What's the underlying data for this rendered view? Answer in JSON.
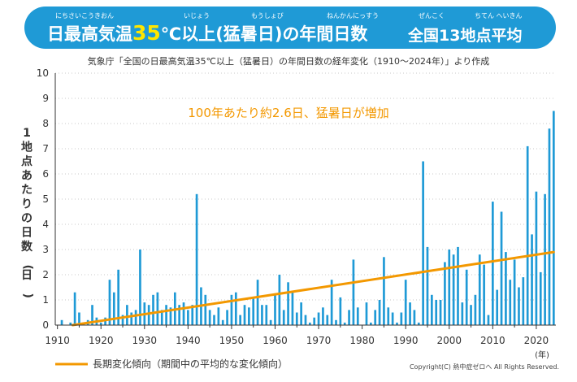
{
  "header": {
    "main_title": "日最高気温35℃以上(猛暑日)の年間日数",
    "parts": [
      "日最高気温",
      "35",
      "℃以上(猛暑日)の年間日数"
    ],
    "region": "全国13地点平均",
    "ruby": {
      "nichi_saikou_kion": "にちさいこうきおん",
      "ijou": "いじょう",
      "moushobi": "もうしょび",
      "nenkan_nissuu": "ねんかんにっすう",
      "zenkoku": "ぜんこく",
      "chiten_heikin": "ちてん へいきん"
    }
  },
  "subtitle": "気象庁「全国の日最高気温35℃以上（猛暑日）の年間日数の経年変化（1910～2024年）」より作成",
  "copyright": "Copyright(C) 熱中症ゼロへ All Rights Reserved.",
  "colors": {
    "banner": "#1f9ad6",
    "bar": "#1f9ad6",
    "trend": "#f39800",
    "annotation": "#f39800",
    "axis": "#333333"
  },
  "chart_data": {
    "type": "bar",
    "title": "日最高気温35℃以上(猛暑日)の年間日数 全国13地点平均",
    "ylabel": "1地点あたりの日数(日)",
    "xlabel": "(年)",
    "ylim": [
      0,
      10
    ],
    "xlim": [
      1910,
      2024
    ],
    "yticks": [
      0,
      1,
      2,
      3,
      4,
      5,
      6,
      7,
      8,
      9,
      10
    ],
    "xticks": [
      1910,
      1920,
      1930,
      1940,
      1950,
      1960,
      1970,
      1980,
      1990,
      2000,
      2010,
      2020
    ],
    "x_unit_label": "(年)",
    "annotation": "100年あたり約2.6日、猛暑日が増加",
    "legend": {
      "label": "長期変化傾向（期間中の平均的な変化傾向）"
    },
    "trend": {
      "name": "長期変化傾向",
      "x": [
        1914,
        2024
      ],
      "y": [
        0.0,
        2.9
      ]
    },
    "years": [
      1910,
      1911,
      1912,
      1913,
      1914,
      1915,
      1916,
      1917,
      1918,
      1919,
      1920,
      1921,
      1922,
      1923,
      1924,
      1925,
      1926,
      1927,
      1928,
      1929,
      1930,
      1931,
      1932,
      1933,
      1934,
      1935,
      1936,
      1937,
      1938,
      1939,
      1940,
      1941,
      1942,
      1943,
      1944,
      1945,
      1946,
      1947,
      1948,
      1949,
      1950,
      1951,
      1952,
      1953,
      1954,
      1955,
      1956,
      1957,
      1958,
      1959,
      1960,
      1961,
      1962,
      1963,
      1964,
      1965,
      1966,
      1967,
      1968,
      1969,
      1970,
      1971,
      1972,
      1973,
      1974,
      1975,
      1976,
      1977,
      1978,
      1979,
      1980,
      1981,
      1982,
      1983,
      1984,
      1985,
      1986,
      1987,
      1988,
      1989,
      1990,
      1991,
      1992,
      1993,
      1994,
      1995,
      1996,
      1997,
      1998,
      1999,
      2000,
      2001,
      2002,
      2003,
      2004,
      2005,
      2006,
      2007,
      2008,
      2009,
      2010,
      2011,
      2012,
      2013,
      2014,
      2015,
      2016,
      2017,
      2018,
      2019,
      2020,
      2021,
      2022,
      2023,
      2024
    ],
    "values": [
      0.0,
      0.2,
      0.0,
      0.1,
      1.3,
      0.5,
      0.1,
      0.2,
      0.8,
      0.3,
      0.1,
      0.3,
      1.8,
      1.3,
      2.2,
      0.4,
      0.8,
      0.5,
      0.6,
      3.0,
      0.9,
      0.8,
      1.2,
      1.3,
      0.6,
      0.8,
      0.7,
      1.3,
      0.8,
      0.9,
      0.6,
      0.8,
      5.2,
      1.5,
      1.2,
      0.6,
      0.4,
      0.7,
      0.2,
      0.6,
      1.2,
      1.3,
      0.4,
      0.8,
      0.7,
      1.1,
      1.8,
      0.8,
      0.8,
      0.2,
      1.2,
      2.0,
      0.6,
      1.7,
      1.3,
      0.5,
      0.9,
      0.4,
      0.1,
      0.3,
      0.5,
      0.7,
      0.4,
      1.8,
      0.2,
      1.1,
      0.1,
      0.6,
      2.6,
      0.7,
      0.0,
      0.9,
      0.1,
      0.6,
      1.0,
      2.7,
      0.7,
      0.5,
      0.1,
      0.5,
      1.8,
      0.9,
      0.6,
      0.1,
      6.5,
      3.1,
      1.2,
      1.0,
      1.0,
      2.5,
      3.0,
      2.8,
      3.1,
      0.9,
      2.2,
      0.8,
      1.2,
      2.8,
      2.4,
      0.4,
      4.9,
      1.4,
      4.5,
      2.9,
      1.8,
      2.6,
      1.5,
      1.9,
      7.1,
      3.6,
      5.3,
      2.1,
      5.2,
      7.8,
      8.5
    ]
  }
}
